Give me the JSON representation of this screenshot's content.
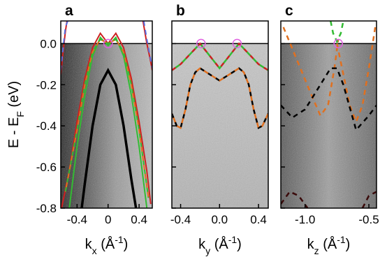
{
  "chart_data": [
    {
      "type": "line",
      "panel_label": "a",
      "xlabel": [
        "k",
        "x",
        " (Å",
        "-1",
        ")"
      ],
      "ylabel": [
        "E - E",
        "F",
        " (eV)"
      ],
      "xlim": [
        -0.61,
        0.57
      ],
      "ylim": [
        -0.8,
        0.11
      ],
      "xticks": [
        -0.4,
        0,
        0.4
      ],
      "yticks": [
        {
          "value": 0,
          "label": "0.0"
        },
        -0.2,
        -0.4,
        -0.6,
        -0.8
      ],
      "series": [
        {
          "color": "#000000",
          "width": 3.5,
          "dashed": false,
          "x": [
            -0.34,
            -0.3,
            -0.2,
            -0.1,
            0,
            0.1,
            0.2,
            0.3,
            0.36
          ],
          "values": [
            -0.8,
            -0.68,
            -0.4,
            -0.2,
            -0.13,
            -0.2,
            -0.4,
            -0.66,
            -0.8
          ]
        },
        {
          "color": "#cc2020",
          "width": 2,
          "dashed": false,
          "x": [
            -0.6,
            -0.5,
            -0.4,
            -0.3,
            -0.2,
            -0.1,
            0,
            0.1,
            0.2,
            0.3,
            0.4,
            0.5,
            0.55
          ],
          "values": [
            -0.8,
            -0.62,
            -0.38,
            -0.17,
            -0.02,
            0.05,
            0.0,
            0.05,
            -0.02,
            -0.17,
            -0.38,
            -0.62,
            -0.78
          ]
        },
        {
          "color": "#33bb33",
          "width": 2,
          "dashed": false,
          "x": [
            -0.5,
            -0.4,
            -0.3,
            -0.2,
            -0.1,
            0,
            0.1,
            0.2,
            0.3,
            0.4,
            0.5
          ],
          "values": [
            -0.8,
            -0.5,
            -0.25,
            -0.06,
            0.03,
            -0.01,
            0.03,
            -0.06,
            -0.25,
            -0.5,
            -0.8
          ]
        },
        {
          "color": "#33bb33",
          "color2": "#e07020",
          "width": 2,
          "dashed": true,
          "x": [
            -0.55,
            -0.4,
            -0.3,
            -0.2,
            -0.1,
            0,
            0.1,
            0.2,
            0.3,
            0.4,
            0.52
          ],
          "values": [
            -0.72,
            -0.42,
            -0.2,
            -0.04,
            0.02,
            0.0,
            0.02,
            -0.04,
            -0.2,
            -0.42,
            -0.75
          ]
        },
        {
          "color": "#cc2020",
          "width": 2,
          "dashed": false,
          "x": [
            -0.61,
            -0.58,
            -0.55,
            -0.53
          ],
          "values": [
            -0.15,
            -0.04,
            0.06,
            0.11
          ]
        },
        {
          "color": "#cc2020",
          "width": 2,
          "dashed": false,
          "x": [
            0.45,
            0.5,
            0.54,
            0.57
          ],
          "values": [
            0.11,
            0.0,
            -0.07,
            -0.13
          ]
        },
        {
          "color": "#5a6ee0",
          "width": 2,
          "dashed": true,
          "x": [
            -0.61,
            -0.58,
            -0.55,
            -0.52
          ],
          "values": [
            -0.13,
            -0.02,
            0.08,
            0.11
          ]
        },
        {
          "color": "#5a6ee0",
          "width": 2,
          "dashed": true,
          "x": [
            0.46,
            0.5,
            0.54,
            0.57
          ],
          "values": [
            0.11,
            0.02,
            -0.06,
            -0.12
          ]
        }
      ],
      "markers": {
        "color": "#e060e0",
        "x": [
          0
        ],
        "values": [
          0
        ]
      }
    },
    {
      "type": "line",
      "panel_label": "b",
      "xlabel": [
        "k",
        "y",
        " (Å",
        "-1",
        ")"
      ],
      "xlim": [
        -0.49,
        0.5
      ],
      "ylim": [
        -0.8,
        0.11
      ],
      "xticks": [
        -0.4,
        {
          "value": 0,
          "label": "0.0"
        },
        0.4
      ],
      "yticks": [
        0,
        -0.2,
        -0.4,
        -0.6,
        -0.8
      ],
      "series": [
        {
          "color": "#000000",
          "color2": "#e07020",
          "width": 2.5,
          "dashed": true,
          "x": [
            -0.49,
            -0.44,
            -0.4,
            -0.35,
            -0.3,
            -0.25,
            -0.2,
            -0.1,
            0,
            0.1,
            0.2,
            0.25,
            0.3,
            0.35,
            0.4,
            0.44,
            0.5
          ],
          "values": [
            -0.34,
            -0.4,
            -0.41,
            -0.32,
            -0.2,
            -0.14,
            -0.12,
            -0.15,
            -0.18,
            -0.15,
            -0.12,
            -0.14,
            -0.2,
            -0.32,
            -0.41,
            -0.4,
            -0.34
          ]
        },
        {
          "color": "#cc2020",
          "color2": "#33bb33",
          "width": 2.5,
          "dashed": true,
          "x": [
            -0.49,
            -0.4,
            -0.3,
            -0.2,
            -0.1,
            0,
            0.1,
            0.2,
            0.3,
            0.4,
            0.5
          ],
          "values": [
            -0.13,
            -0.1,
            -0.05,
            0,
            -0.06,
            -0.12,
            -0.06,
            0,
            -0.05,
            -0.1,
            -0.13
          ]
        }
      ],
      "markers": {
        "color": "#e060e0",
        "x": [
          -0.19,
          0.18
        ],
        "values": [
          0,
          0
        ]
      }
    },
    {
      "type": "line",
      "panel_label": "c",
      "xlabel": [
        "k",
        "z",
        " (Å",
        "-1",
        ")"
      ],
      "xlim": [
        -1.19,
        -0.44
      ],
      "ylim": [
        -0.8,
        0.11
      ],
      "xticks": [
        {
          "value": -1,
          "label": "-1.0"
        },
        -0.5
      ],
      "yticks": [
        0,
        -0.2,
        -0.4,
        -0.6,
        -0.8
      ],
      "series": [
        {
          "color": "#e07020",
          "width": 2.5,
          "dashed": true,
          "x": [
            -1.17,
            -1.05,
            -0.95,
            -0.88,
            -0.82,
            -0.77,
            -0.74
          ],
          "values": [
            0.08,
            -0.1,
            -0.25,
            -0.35,
            -0.3,
            -0.12,
            0.02
          ]
        },
        {
          "color": "#e07020",
          "width": 2.5,
          "dashed": true,
          "x": [
            -0.75,
            -0.7,
            -0.65,
            -0.6,
            -0.55,
            -0.5,
            -0.45
          ],
          "values": [
            0.0,
            -0.15,
            -0.3,
            -0.38,
            -0.3,
            -0.12,
            0.08
          ]
        },
        {
          "color": "#33bb33",
          "width": 2.5,
          "dashed": true,
          "x": [
            -0.8,
            -0.78,
            -0.75,
            -0.72,
            -0.7
          ],
          "values": [
            0.11,
            0.05,
            0.01,
            0.05,
            0.11
          ]
        },
        {
          "color": "#000000",
          "width": 2.5,
          "dashed": true,
          "x": [
            -1.19,
            -1.1,
            -1.0,
            -0.9,
            -0.8,
            -0.75,
            -0.7,
            -0.6,
            -0.5,
            -0.44
          ],
          "values": [
            -0.3,
            -0.36,
            -0.32,
            -0.22,
            -0.12,
            -0.12,
            -0.2,
            -0.42,
            -0.35,
            -0.3
          ]
        },
        {
          "color": "#3a0a0a",
          "width": 2.5,
          "dashed": true,
          "x": [
            -1.19,
            -1.12,
            -1.05,
            -0.98
          ],
          "values": [
            -0.78,
            -0.72,
            -0.74,
            -0.8
          ]
        },
        {
          "color": "#3a0a0a",
          "width": 2.5,
          "dashed": true,
          "x": [
            -0.55,
            -0.5,
            -0.44
          ],
          "values": [
            -0.8,
            -0.74,
            -0.72
          ]
        }
      ],
      "markers": {
        "color": "#e060e0",
        "x": [
          -0.74
        ],
        "values": [
          0
        ]
      }
    }
  ]
}
